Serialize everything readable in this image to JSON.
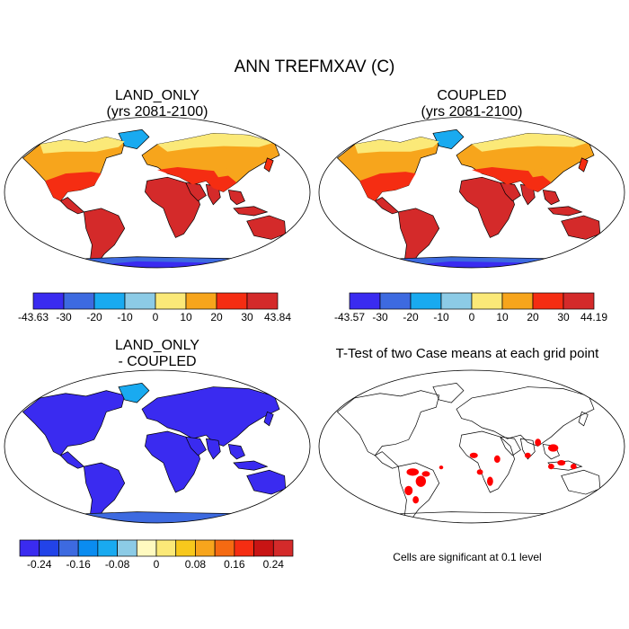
{
  "title": "ANN TREFMXAV (C)",
  "panels": {
    "land_only": {
      "line1": "LAND_ONLY",
      "line2": "(yrs 2081-2100)"
    },
    "coupled": {
      "line1": "COUPLED",
      "line2": "(yrs 2081-2100)"
    },
    "diff": {
      "line1": "LAND_ONLY",
      "line2": "- COUPLED"
    },
    "ttest": {
      "title": "T-Test of two Case means at each grid point",
      "note": "Cells are significant at 0.1 level"
    }
  },
  "colorbars": {
    "land_only": {
      "colors": [
        "#3a2bf0",
        "#3d6ae0",
        "#19aaf0",
        "#8ccbe6",
        "#fbe978",
        "#f7a51c",
        "#f52d12",
        "#d42a2a"
      ],
      "labels": [
        "-43.63",
        "-30",
        "-20",
        "-10",
        "0",
        "10",
        "20",
        "30",
        "43.84"
      ]
    },
    "coupled": {
      "colors": [
        "#3a2bf0",
        "#3d6ae0",
        "#19aaf0",
        "#8ccbe6",
        "#fbe978",
        "#f7a51c",
        "#f52d12",
        "#d42a2a"
      ],
      "labels": [
        "-43.57",
        "-30",
        "-20",
        "-10",
        "0",
        "10",
        "20",
        "30",
        "44.19"
      ]
    },
    "diff": {
      "colors": [
        "#3a2bf0",
        "#2243e8",
        "#3d6ae0",
        "#0a8cf0",
        "#19aaf0",
        "#8ccbe6",
        "#fffac0",
        "#fbe978",
        "#f7c81c",
        "#f7a51c",
        "#f56a12",
        "#f52d12",
        "#c81414",
        "#d42a2a"
      ],
      "labels": [
        "-0.24",
        "-0.16",
        "-0.08",
        "0",
        "0.08",
        "0.16",
        "0.24"
      ]
    }
  },
  "map_colors": {
    "ocean": "#ffffff",
    "hot": "#d42a2a",
    "warm": "#f52d12",
    "mild": "#f7a51c",
    "cool": "#fbe978",
    "cold": "#8ccbe6",
    "ice": "#19aaf0",
    "frozen": "#3d6ae0",
    "antarctic": "#3a2bf0",
    "diff_main": "#3a2bf0",
    "diff_alt": "#3d6ae0",
    "diff_light": "#19aaf0",
    "significant": "#ff0000",
    "coast": "#000000"
  }
}
